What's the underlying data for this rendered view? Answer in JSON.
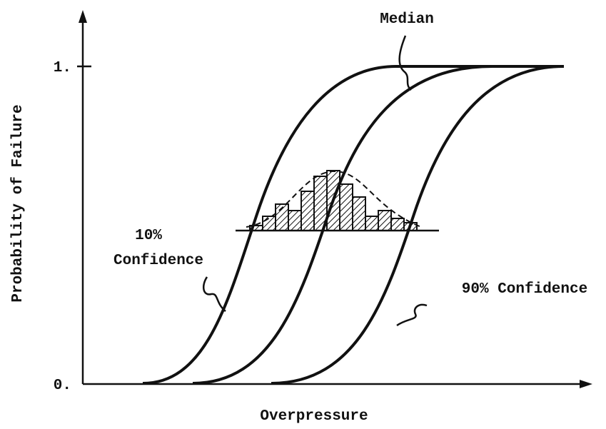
{
  "y_axis": {
    "label": "Probability of Failure",
    "ticks": [
      "1.",
      "0."
    ]
  },
  "x_axis": {
    "label": "Overpressure"
  },
  "labels": {
    "median": "Median",
    "low": [
      "10%",
      "Confidence"
    ],
    "high": "90% Confidence"
  }
}
